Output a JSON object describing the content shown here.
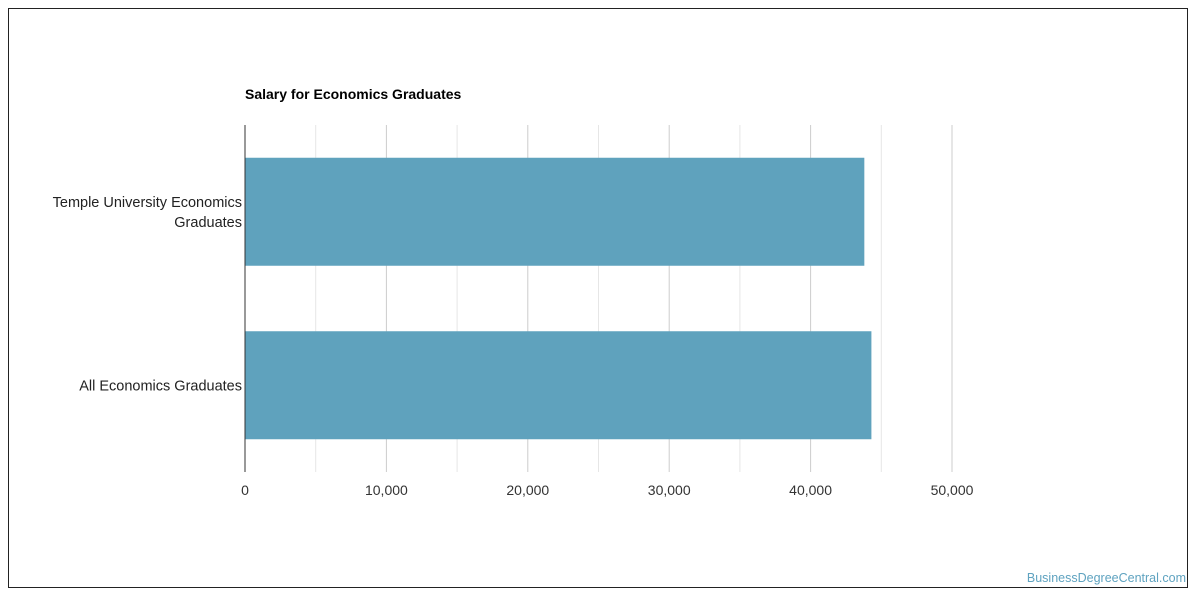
{
  "chart_data": {
    "type": "bar",
    "orientation": "horizontal",
    "title": "Salary for Economics Graduates",
    "categories": [
      [
        "Temple University Economics",
        "Graduates"
      ],
      [
        "All Economics Graduates"
      ]
    ],
    "values": [
      43800,
      44300
    ],
    "xlim": [
      0,
      50000
    ],
    "xticks": [
      0,
      10000,
      20000,
      30000,
      40000,
      50000
    ],
    "xtick_labels": [
      "0",
      "10,000",
      "20,000",
      "30,000",
      "40,000",
      "50,000"
    ],
    "grid": true,
    "bar_color": "#5fa2bd",
    "xlabel": "",
    "ylabel": ""
  },
  "watermark": "BusinessDegreeCentral.com"
}
